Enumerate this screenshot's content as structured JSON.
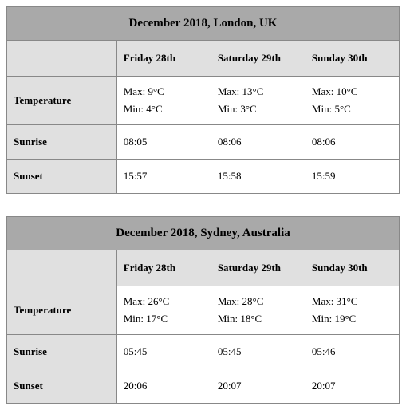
{
  "tables": [
    {
      "title": "December 2018, London, UK",
      "columns": [
        "",
        "Friday 28th",
        "Saturday 29th",
        "Sunday 30th"
      ],
      "rows": [
        {
          "label": "Temperature",
          "cells": [
            {
              "max": "Max: 9°C",
              "min": "Min: 4°C"
            },
            {
              "max": "Max: 13°C",
              "min": "Min: 3°C"
            },
            {
              "max": "Max: 10°C",
              "min": "Min: 5°C"
            }
          ]
        },
        {
          "label": "Sunrise",
          "cells": [
            "08:05",
            "08:06",
            "08:06"
          ]
        },
        {
          "label": "Sunset",
          "cells": [
            "15:57",
            "15:58",
            "15:59"
          ]
        }
      ]
    },
    {
      "title": "December 2018, Sydney, Australia",
      "columns": [
        "",
        "Friday 28th",
        "Saturday 29th",
        "Sunday 30th"
      ],
      "rows": [
        {
          "label": "Temperature",
          "cells": [
            {
              "max": "Max: 26°C",
              "min": "Min: 17°C"
            },
            {
              "max": "Max: 28°C",
              "min": "Min: 18°C"
            },
            {
              "max": "Max: 31°C",
              "min": "Min: 19°C"
            }
          ]
        },
        {
          "label": "Sunrise",
          "cells": [
            "05:45",
            "05:45",
            "05:46"
          ]
        },
        {
          "label": "Sunset",
          "cells": [
            "20:06",
            "20:07",
            "20:07"
          ]
        }
      ]
    }
  ],
  "style": {
    "title_bg": "#a9a9a9",
    "header_bg": "#e0e0e0",
    "border_color": "#888888",
    "body_bg": "#ffffff",
    "text_color": "#000000",
    "title_fontsize": 15,
    "header_fontsize": 13,
    "body_fontsize": 13,
    "col_widths_pct": [
      28,
      24,
      24,
      24
    ]
  }
}
